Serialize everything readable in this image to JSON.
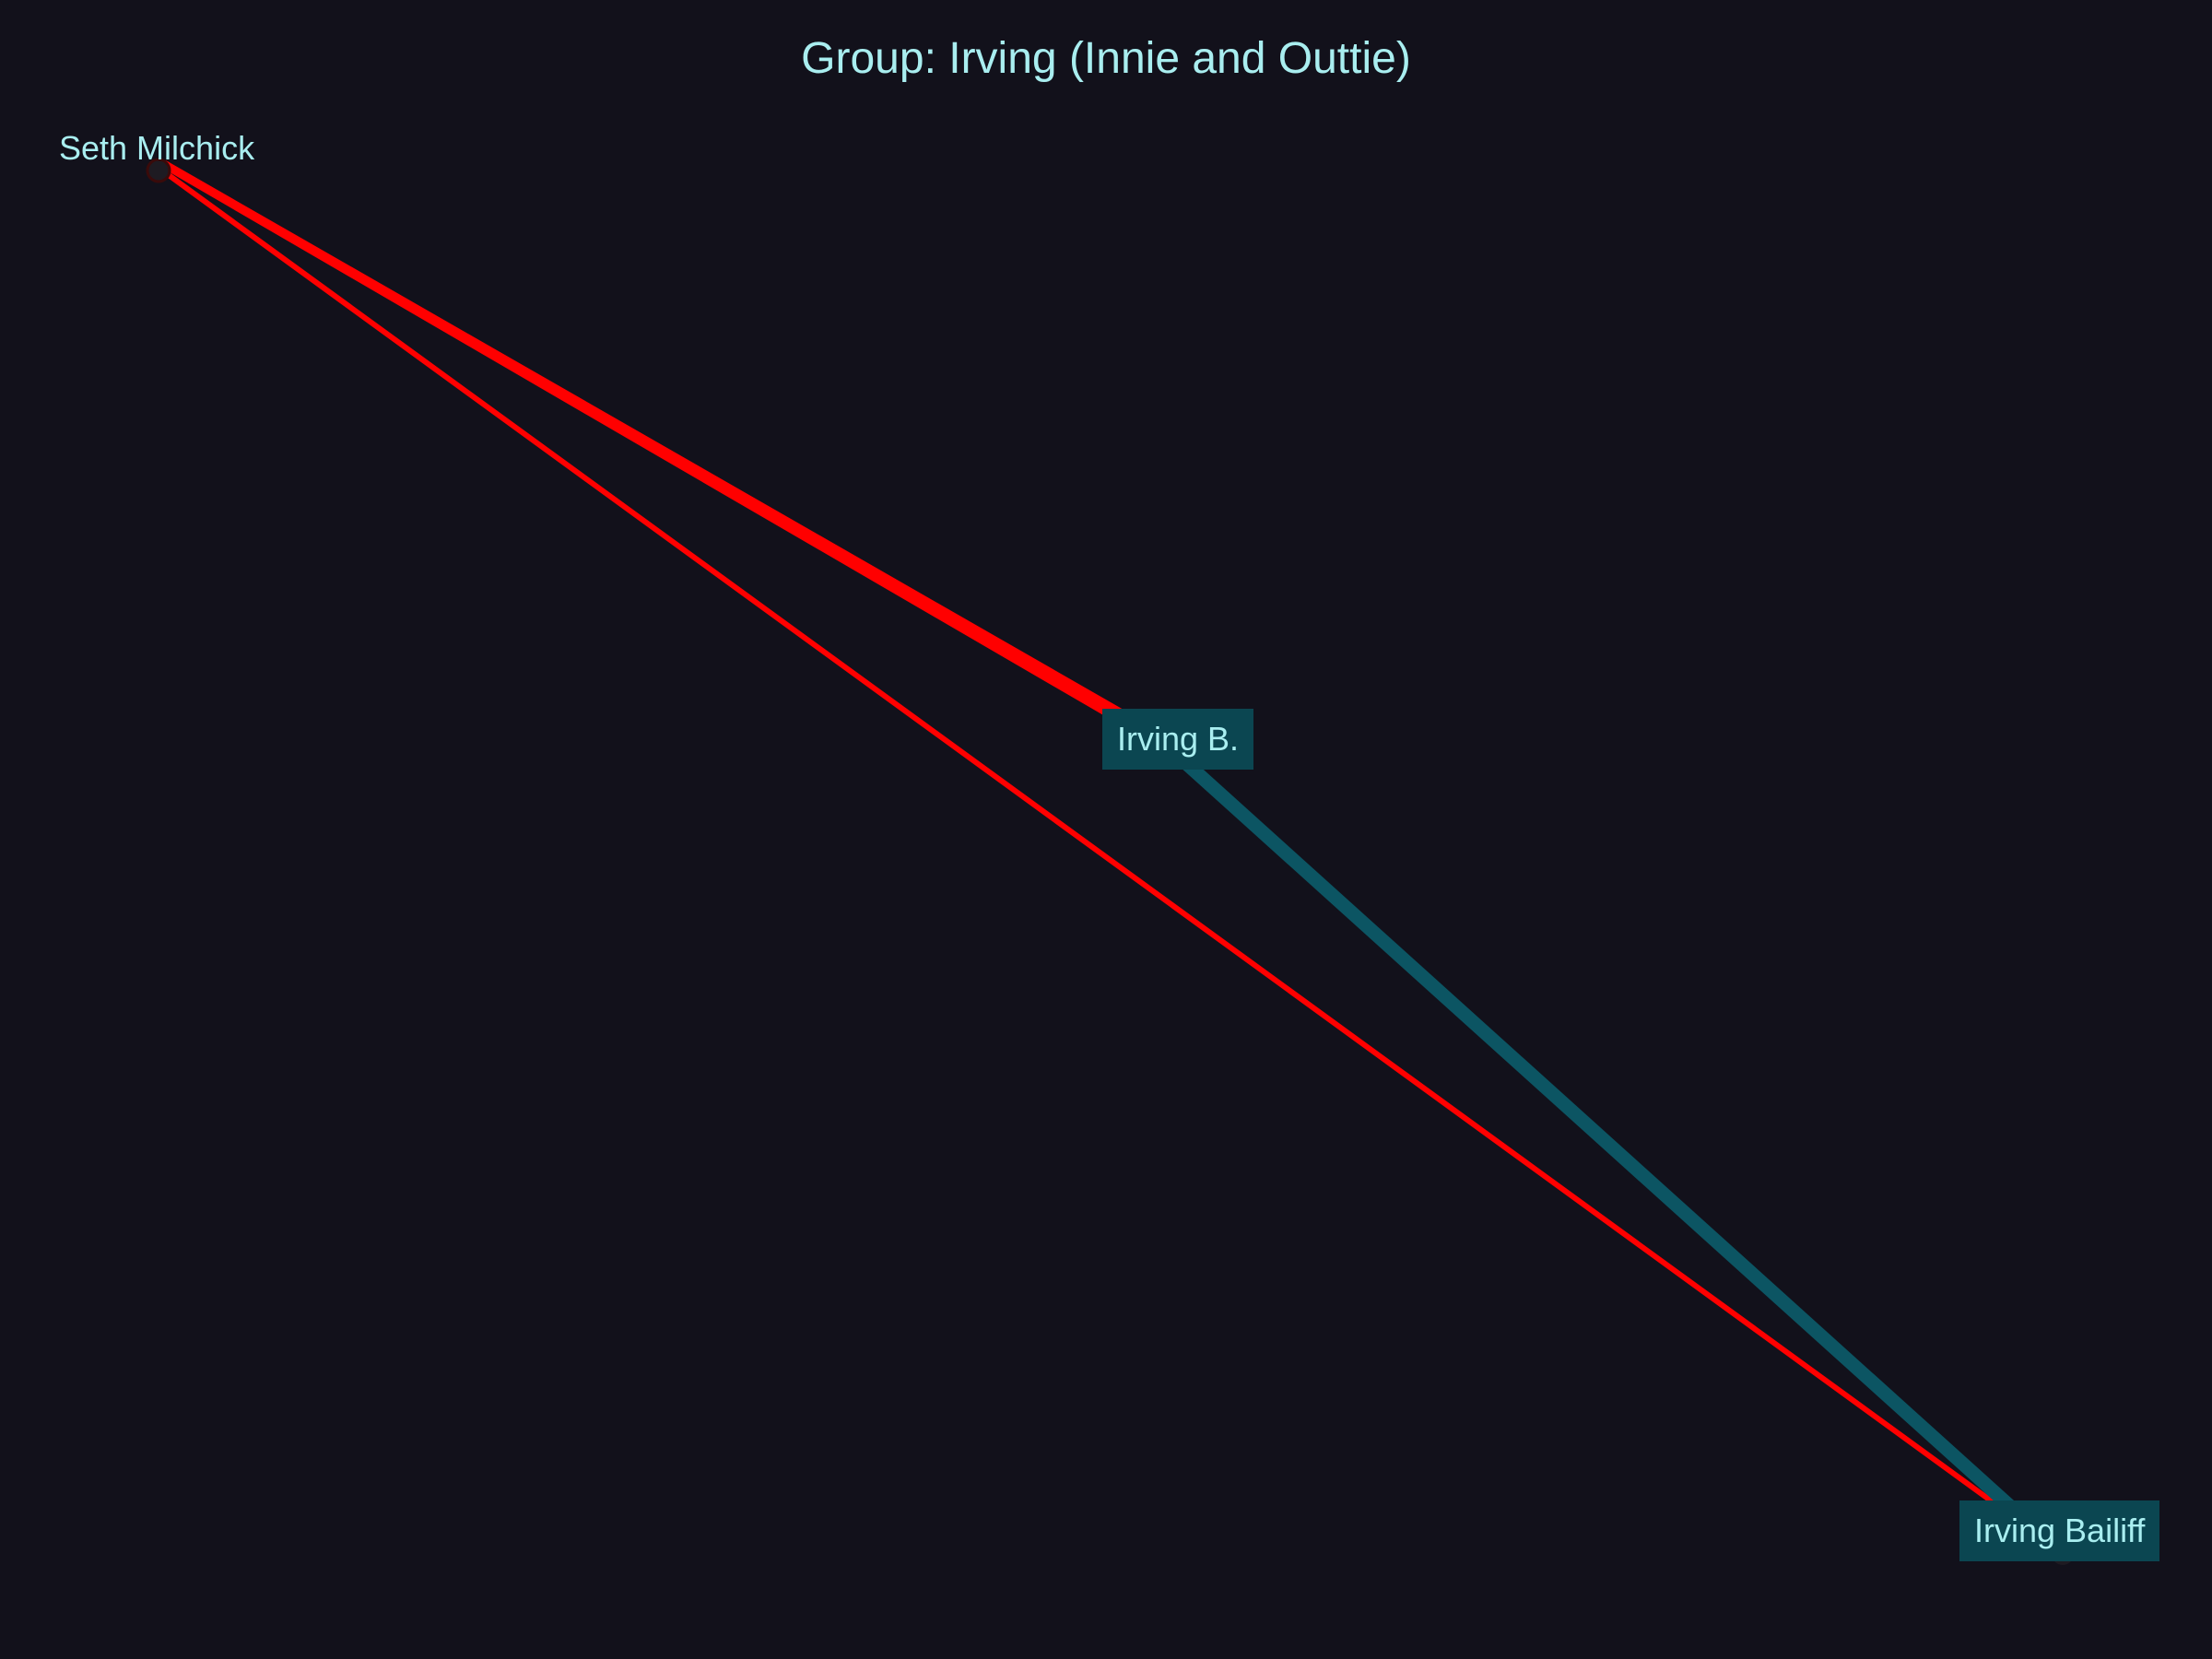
{
  "title": "Group: Irving (Innie and Outtie)",
  "colors": {
    "background": "#12111b",
    "text": "#a9eef0",
    "edge_red": "#ff0000",
    "edge_teal": "#0c5563",
    "label_box": "#0b4651"
  },
  "nodes": [
    {
      "id": "seth",
      "label": "Seth Milchick",
      "boxed": false
    },
    {
      "id": "irving_b",
      "label": "Irving B.",
      "boxed": true
    },
    {
      "id": "irving_bailiff",
      "label": "Irving Bailiff",
      "boxed": true
    }
  ],
  "edges": [
    {
      "source": "seth",
      "target": "irving_b",
      "color": "red",
      "weight": "heavy"
    },
    {
      "source": "seth",
      "target": "irving_bailiff",
      "color": "red",
      "weight": "thin"
    },
    {
      "source": "irving_b",
      "target": "irving_bailiff",
      "color": "teal",
      "weight": "medium"
    }
  ]
}
